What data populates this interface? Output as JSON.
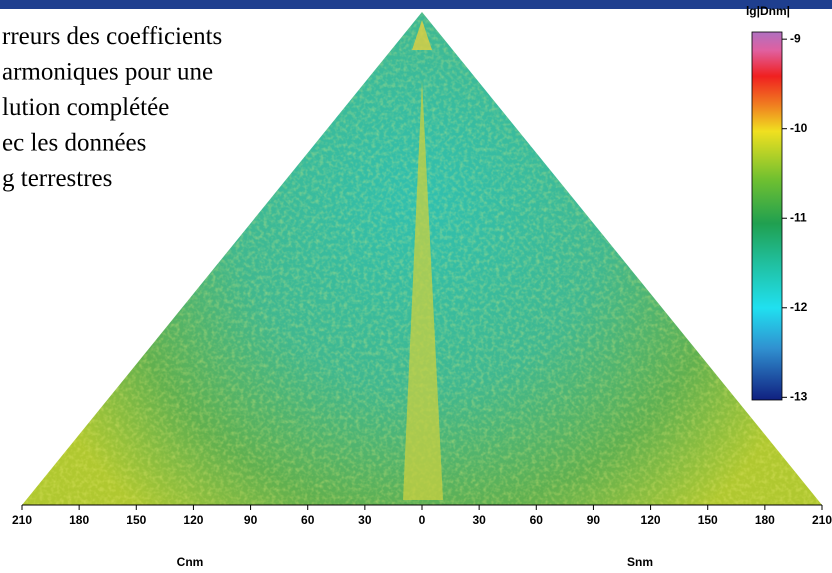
{
  "chart_data": {
    "type": "triangle-map",
    "title_lines": [
      "rreurs des coefficients",
      "armoniques pour une",
      "lution complétée",
      "ec les données",
      "g terrestres"
    ],
    "xlabel_left": "Cnm",
    "xlabel_right": "Snm",
    "xlim": [
      -210,
      210
    ],
    "xticks": [
      {
        "value": -210,
        "label": "210"
      },
      {
        "value": -180,
        "label": "180"
      },
      {
        "value": -150,
        "label": "150"
      },
      {
        "value": -120,
        "label": "120"
      },
      {
        "value": -90,
        "label": "90"
      },
      {
        "value": -60,
        "label": "60"
      },
      {
        "value": -30,
        "label": "30"
      },
      0,
      30,
      60,
      90,
      120,
      150,
      180,
      210
    ],
    "colorbar": {
      "label": "lg|Dnm|",
      "lim": [
        -13.03,
        -8.92
      ],
      "ticks": [
        -9,
        -10,
        -11,
        -12,
        -13
      ]
    }
  }
}
